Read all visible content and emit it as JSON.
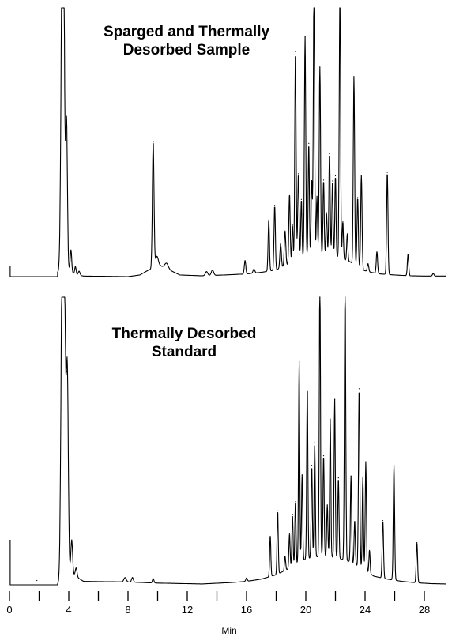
{
  "chart_data": {
    "type": "line",
    "xlabel": "Min",
    "xlim": [
      0,
      29.5
    ],
    "x_ticks_major": [
      0,
      4,
      8,
      12,
      16,
      20,
      24,
      28
    ],
    "x_tick_labels": [
      "0",
      "4",
      "8",
      "12",
      "16",
      "20",
      "24",
      "28"
    ],
    "x_ticks_minor": [
      2,
      6,
      10,
      14,
      18,
      22,
      26
    ],
    "grid": false,
    "legend": "none",
    "panels": [
      {
        "name": "top",
        "title_lines": [
          "Sparged and Thermally",
          "Desorbed Sample"
        ],
        "ylim": [
          0,
          100
        ],
        "baseline": [
          [
            0,
            1.5
          ],
          [
            3.2,
            1.5
          ],
          [
            3.9,
            3
          ],
          [
            4.4,
            0.8
          ],
          [
            5,
            0.2
          ],
          [
            8,
            0
          ],
          [
            8.8,
            0.6
          ],
          [
            9.4,
            2.5
          ],
          [
            10.2,
            4
          ],
          [
            10.6,
            3
          ],
          [
            11.5,
            0.6
          ],
          [
            13,
            0.3
          ],
          [
            14.5,
            0.6
          ],
          [
            16,
            1
          ],
          [
            17,
            1.6
          ],
          [
            18,
            2.5
          ],
          [
            19,
            5
          ],
          [
            20,
            7.5
          ],
          [
            21,
            8
          ],
          [
            22,
            7.5
          ],
          [
            23,
            5.5
          ],
          [
            23.6,
            3
          ],
          [
            24.2,
            1.8
          ],
          [
            25,
            1
          ],
          [
            26,
            0.6
          ],
          [
            27,
            0.3
          ],
          [
            28,
            0.2
          ],
          [
            29.5,
            0.2
          ]
        ],
        "step": {
          "x_start": 0.05,
          "x_end": 3.25,
          "height": 8
        },
        "peaks": [
          [
            3.55,
            100,
            0.08
          ],
          [
            3.65,
            100,
            0.07
          ],
          [
            3.85,
            55,
            0.06
          ],
          [
            4.15,
            8,
            0.05
          ],
          [
            4.45,
            3,
            0.05
          ],
          [
            4.7,
            1.5,
            0.06
          ],
          [
            9.7,
            47,
            0.055
          ],
          [
            9.95,
            4,
            0.1
          ],
          [
            10.6,
            2,
            0.12
          ],
          [
            13.3,
            1.5,
            0.08
          ],
          [
            13.7,
            2,
            0.08
          ],
          [
            15.9,
            5,
            0.05
          ],
          [
            16.5,
            1.5,
            0.06
          ],
          [
            17.5,
            19,
            0.045
          ],
          [
            17.9,
            24,
            0.045
          ],
          [
            18.3,
            9,
            0.05
          ],
          [
            18.6,
            13,
            0.05
          ],
          [
            18.9,
            26,
            0.045
          ],
          [
            19.1,
            14,
            0.04
          ],
          [
            19.3,
            78,
            0.045
          ],
          [
            19.5,
            32,
            0.045
          ],
          [
            19.7,
            22,
            0.04
          ],
          [
            19.95,
            82,
            0.045
          ],
          [
            20.2,
            42,
            0.04
          ],
          [
            20.4,
            28,
            0.04
          ],
          [
            20.55,
            98,
            0.045
          ],
          [
            20.75,
            22,
            0.04
          ],
          [
            20.95,
            70,
            0.045
          ],
          [
            21.2,
            28,
            0.04
          ],
          [
            21.4,
            16,
            0.04
          ],
          [
            21.6,
            38,
            0.045
          ],
          [
            21.8,
            28,
            0.04
          ],
          [
            22.0,
            30,
            0.04
          ],
          [
            22.3,
            100,
            0.045
          ],
          [
            22.5,
            14,
            0.04
          ],
          [
            22.8,
            10,
            0.04
          ],
          [
            23.25,
            70,
            0.045
          ],
          [
            23.5,
            26,
            0.045
          ],
          [
            23.75,
            35,
            0.045
          ],
          [
            24.2,
            3,
            0.05
          ],
          [
            24.8,
            8,
            0.045
          ],
          [
            25.5,
            38,
            0.045
          ],
          [
            26.9,
            8,
            0.045
          ],
          [
            28.6,
            1,
            0.05
          ]
        ]
      },
      {
        "name": "bottom",
        "title_lines": [
          "Thermally Desorbed",
          "Standard"
        ],
        "ylim": [
          0,
          100
        ],
        "baseline": [
          [
            0,
            0
          ],
          [
            3.2,
            0
          ],
          [
            3.9,
            4
          ],
          [
            4.3,
            3.5
          ],
          [
            5,
            1.2
          ],
          [
            8,
            1
          ],
          [
            10,
            0.6
          ],
          [
            13,
            0.3
          ],
          [
            15,
            0.8
          ],
          [
            16,
            1.2
          ],
          [
            17,
            2
          ],
          [
            18,
            3.5
          ],
          [
            19,
            6
          ],
          [
            20,
            9
          ],
          [
            21,
            10
          ],
          [
            22,
            9.5
          ],
          [
            23,
            8
          ],
          [
            24,
            5
          ],
          [
            24.6,
            3
          ],
          [
            25.5,
            2
          ],
          [
            26.5,
            1.2
          ],
          [
            27.5,
            0.7
          ],
          [
            28.5,
            0.4
          ],
          [
            29.5,
            0.3
          ]
        ],
        "step": {
          "x_start": 0.05,
          "x_end": 3.25,
          "height": 16
        },
        "peaks": [
          [
            1.85,
            1.5,
            0.05
          ],
          [
            3.55,
            100,
            0.08
          ],
          [
            3.7,
            100,
            0.08
          ],
          [
            3.9,
            70,
            0.07
          ],
          [
            4.2,
            12,
            0.06
          ],
          [
            4.5,
            3,
            0.06
          ],
          [
            7.8,
            1.5,
            0.08
          ],
          [
            8.3,
            1.6,
            0.06
          ],
          [
            9.7,
            1.5,
            0.05
          ],
          [
            16.0,
            1.2,
            0.05
          ],
          [
            17.6,
            14,
            0.04
          ],
          [
            18.1,
            22,
            0.04
          ],
          [
            18.6,
            5,
            0.04
          ],
          [
            18.9,
            12,
            0.04
          ],
          [
            19.1,
            18,
            0.04
          ],
          [
            19.3,
            22,
            0.04
          ],
          [
            19.55,
            70,
            0.04
          ],
          [
            19.75,
            30,
            0.04
          ],
          [
            20.1,
            60,
            0.04
          ],
          [
            20.4,
            32,
            0.04
          ],
          [
            20.6,
            40,
            0.04
          ],
          [
            20.95,
            97,
            0.04
          ],
          [
            21.2,
            35,
            0.04
          ],
          [
            21.45,
            18,
            0.04
          ],
          [
            21.65,
            48,
            0.04
          ],
          [
            21.95,
            55,
            0.04
          ],
          [
            22.2,
            28,
            0.04
          ],
          [
            22.65,
            96,
            0.045
          ],
          [
            23.05,
            30,
            0.04
          ],
          [
            23.3,
            15,
            0.04
          ],
          [
            23.6,
            62,
            0.045
          ],
          [
            23.85,
            32,
            0.04
          ],
          [
            24.05,
            38,
            0.04
          ],
          [
            24.3,
            8,
            0.04
          ],
          [
            25.2,
            20,
            0.045
          ],
          [
            25.95,
            40,
            0.045
          ],
          [
            27.5,
            14,
            0.045
          ]
        ]
      }
    ]
  }
}
